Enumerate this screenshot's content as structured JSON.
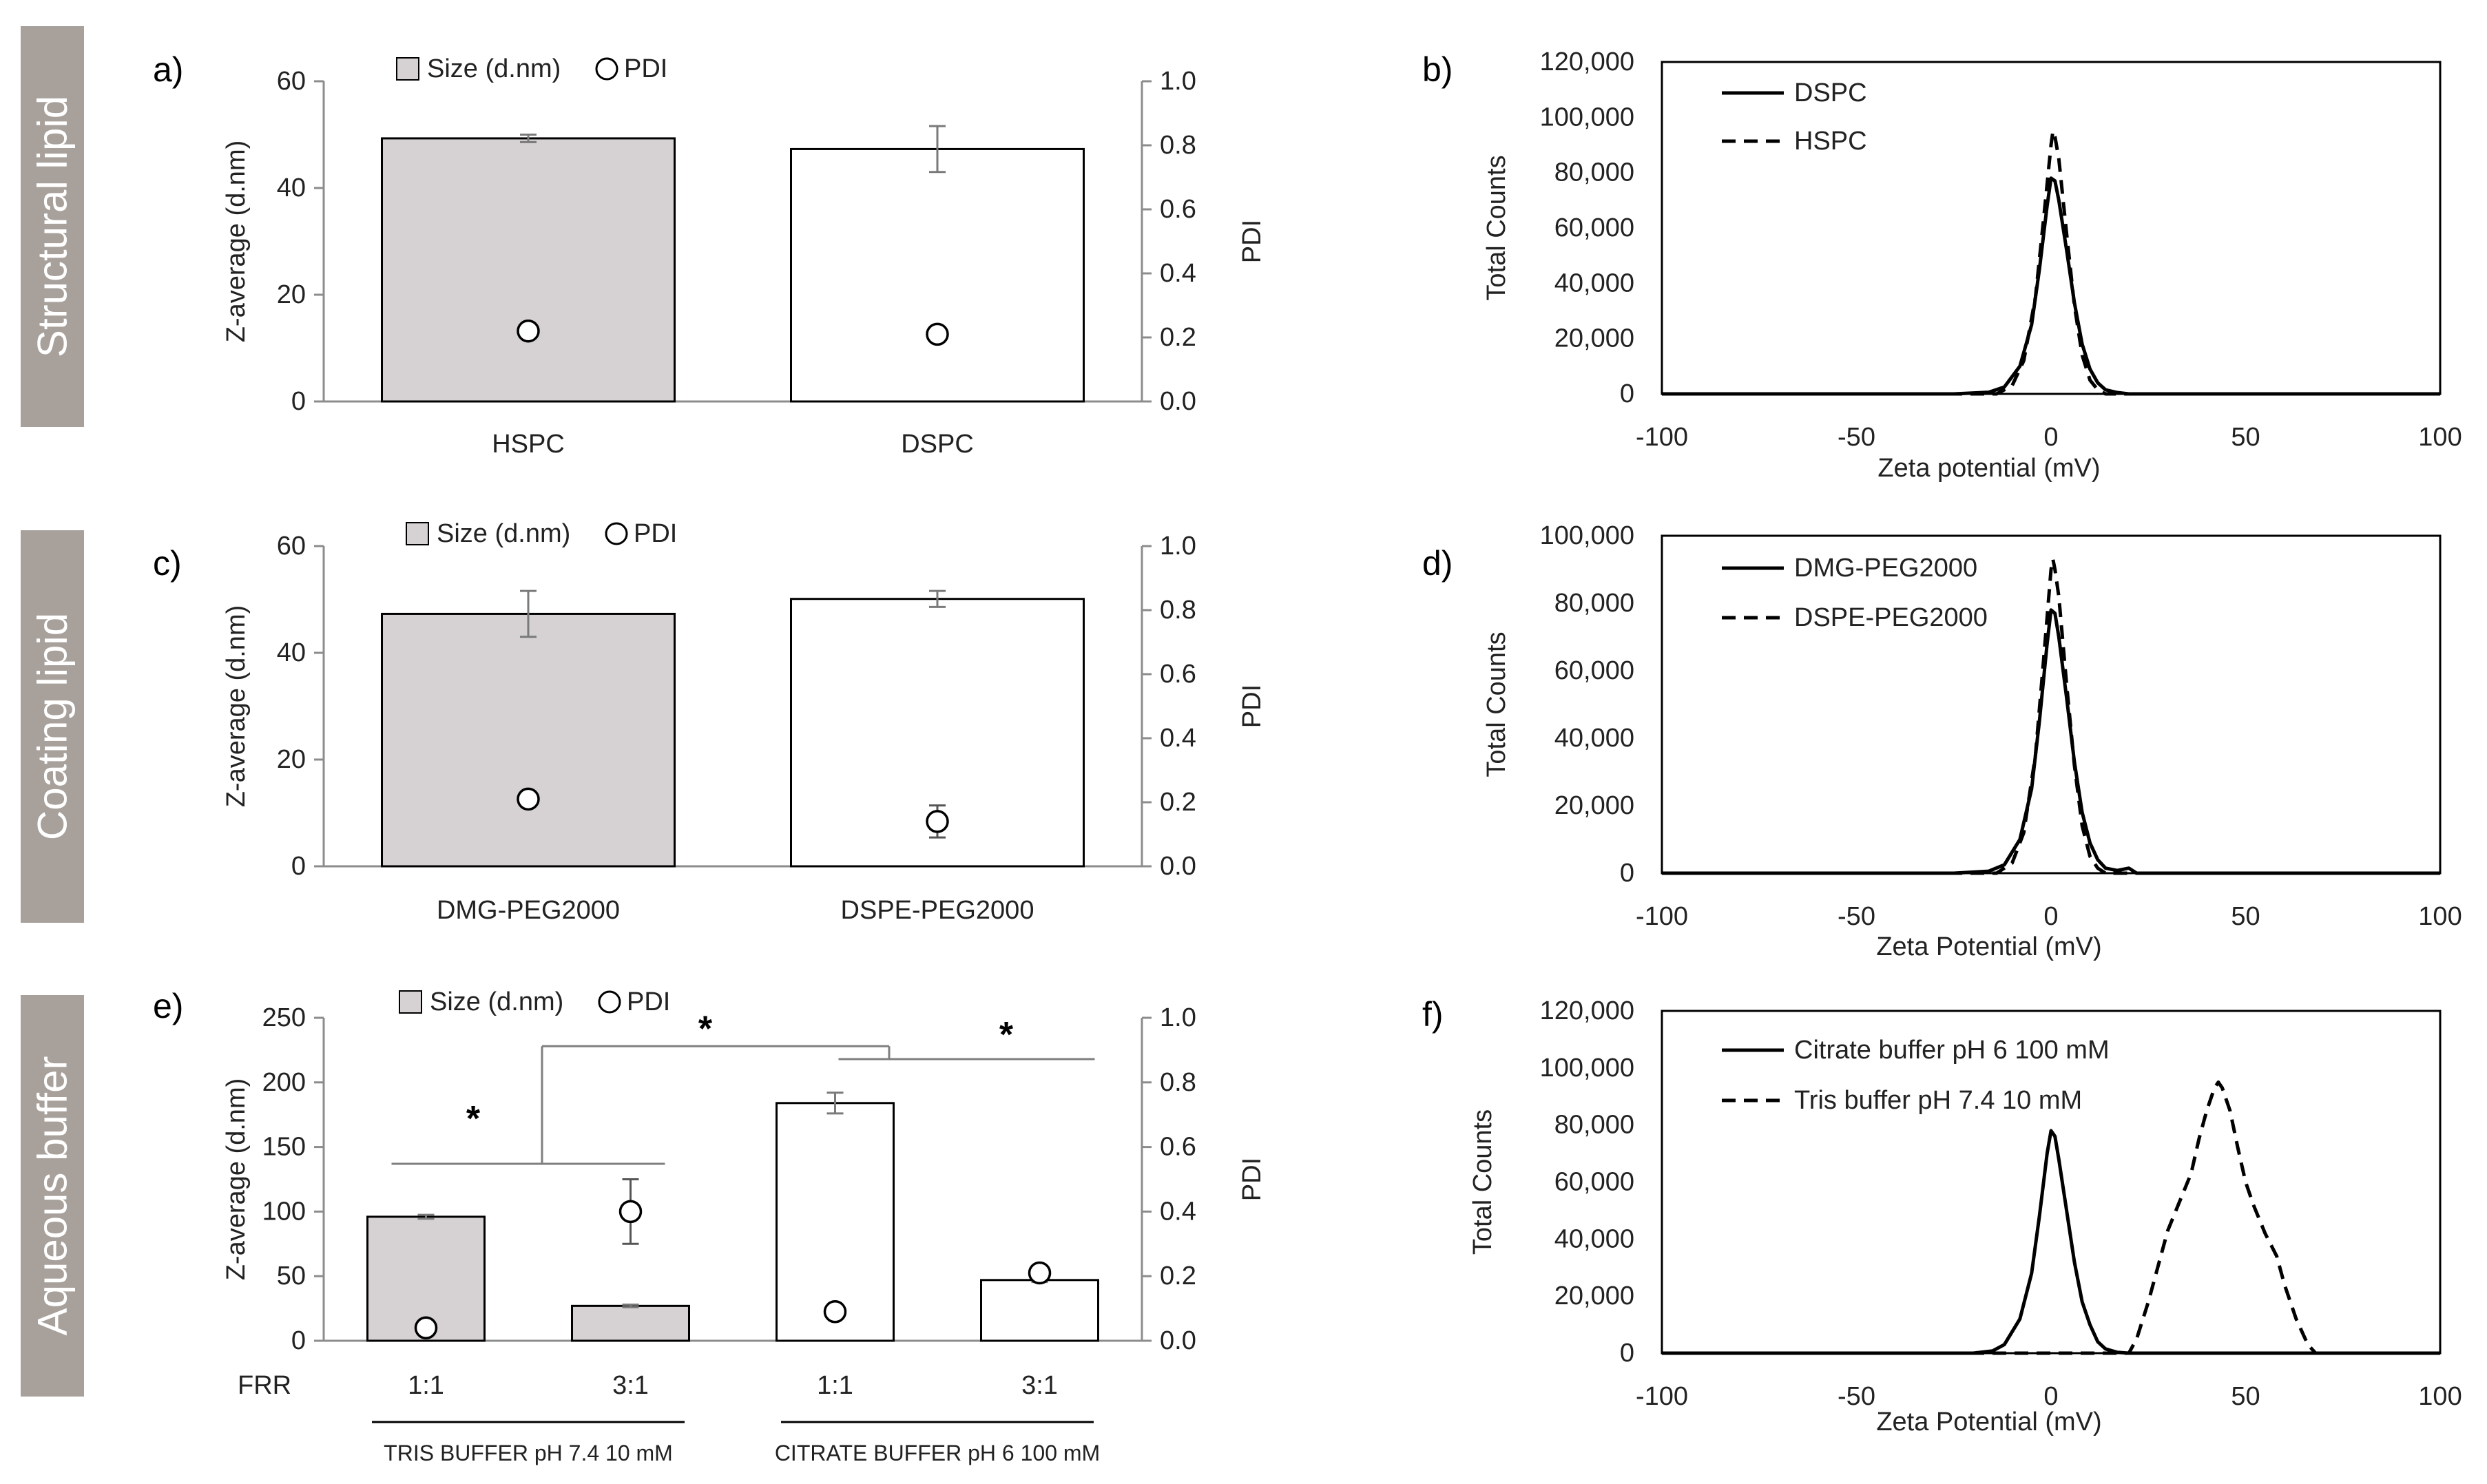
{
  "row_labels": [
    "Structural lipid",
    "Coating lipid",
    "Aqueous buffer"
  ],
  "colors": {
    "band": "#a7a09b",
    "gray_bar": "#d6d2d3",
    "white_bar": "#ffffff",
    "ink": "#000000",
    "sig_line": "#7f7f7f"
  },
  "chart_data": [
    {
      "panel": "a)",
      "type": "bar",
      "legend": [
        "Size (d.nm)",
        "PDI"
      ],
      "ylabel": "Z-average (d.nm)",
      "y2label": "PDI",
      "ylim": [
        0,
        60
      ],
      "yticks": [
        "0",
        "20",
        "40",
        "60"
      ],
      "y2lim": [
        0,
        1
      ],
      "y2ticks": [
        "0.0",
        "0.2",
        "0.4",
        "0.6",
        "0.8",
        "1.0"
      ],
      "categories": [
        "HSPC",
        "DSPC"
      ],
      "bar_fill": [
        "gray",
        "white"
      ],
      "values": [
        49.3,
        47.3
      ],
      "errors": [
        0.7,
        4.3
      ],
      "pdi": [
        0.22,
        0.21
      ],
      "pdi_errors": [
        0,
        0
      ]
    },
    {
      "panel": "c)",
      "type": "bar",
      "legend": [
        "Size (d.nm)",
        "PDI"
      ],
      "ylabel": "Z-average (d.nm)",
      "y2label": "PDI",
      "ylim": [
        0,
        60
      ],
      "yticks": [
        "0",
        "20",
        "40",
        "60"
      ],
      "y2lim": [
        0,
        1
      ],
      "y2ticks": [
        "0.0",
        "0.2",
        "0.4",
        "0.6",
        "0.8",
        "1.0"
      ],
      "categories": [
        "DMG-PEG2000",
        "DSPE-PEG2000"
      ],
      "bar_fill": [
        "gray",
        "white"
      ],
      "values": [
        47.3,
        50.1
      ],
      "errors": [
        4.3,
        1.5
      ],
      "pdi": [
        0.21,
        0.14
      ],
      "pdi_errors": [
        0,
        0.05
      ]
    },
    {
      "panel": "e)",
      "type": "bar",
      "legend": [
        "Size (d.nm)",
        "PDI"
      ],
      "ylabel": "Z-average (d.nm)",
      "y2label": "PDI",
      "ylim": [
        0,
        250
      ],
      "yticks": [
        "0",
        "50",
        "100",
        "150",
        "200",
        "250"
      ],
      "y2lim": [
        0,
        1
      ],
      "y2ticks": [
        "0.0",
        "0.2",
        "0.4",
        "0.6",
        "0.8",
        "1.0"
      ],
      "row_label": "FRR",
      "categories": [
        "1:1",
        "3:1",
        "1:1",
        "3:1"
      ],
      "bar_fill": [
        "gray",
        "gray",
        "white",
        "white"
      ],
      "values": [
        96,
        27,
        184,
        47
      ],
      "errors": [
        1.5,
        1.0,
        8,
        1.5
      ],
      "pdi": [
        0.04,
        0.4,
        0.09,
        0.21
      ],
      "pdi_errors": [
        0,
        0.1,
        0,
        0.02
      ],
      "groups": [
        "TRIS BUFFER pH 7.4 10 mM",
        "CITRATE BUFFER pH 6 100 mM"
      ],
      "significance": "*"
    },
    {
      "panel": "b)",
      "type": "line",
      "xlabel": "Zeta potential (mV)",
      "ylabel": "Total Counts",
      "xlim": [
        -100,
        100
      ],
      "xticks": [
        "-100",
        "-50",
        "0",
        "50",
        "100"
      ],
      "ylim": [
        0,
        120000
      ],
      "yticks": [
        "0",
        "20,000",
        "40,000",
        "60,000",
        "80,000",
        "100,000",
        "120,000"
      ],
      "series": [
        {
          "name": "DSPC",
          "style": "solid",
          "x": [
            -100,
            -25,
            -16,
            -12,
            -8,
            -5,
            -3,
            -1,
            0,
            1,
            2,
            4,
            6,
            8,
            10,
            12,
            14,
            17,
            20,
            25,
            100
          ],
          "y": [
            0,
            0,
            600,
            2500,
            10000,
            25000,
            45000,
            68000,
            78000,
            77000,
            70000,
            52000,
            33000,
            18000,
            9000,
            4000,
            1500,
            500,
            0,
            0,
            0
          ]
        },
        {
          "name": "HSPC",
          "style": "dashed",
          "x": [
            -100,
            -14,
            -10,
            -7,
            -4,
            -2,
            0,
            0.5,
            1,
            2,
            4,
            6,
            8,
            10,
            12,
            14,
            100
          ],
          "y": [
            0,
            0,
            3000,
            12000,
            35000,
            62000,
            90000,
            95000,
            93000,
            85000,
            58000,
            32000,
            14000,
            5000,
            1500,
            0,
            0
          ]
        }
      ]
    },
    {
      "panel": "d)",
      "type": "line",
      "xlabel": "Zeta Potential (mV)",
      "ylabel": "Total Counts",
      "xlim": [
        -100,
        100
      ],
      "xticks": [
        "-100",
        "-50",
        "0",
        "50",
        "100"
      ],
      "ylim": [
        0,
        100000
      ],
      "yticks": [
        "0",
        "20,000",
        "40,000",
        "60,000",
        "80,000",
        "100,000"
      ],
      "series": [
        {
          "name": "DMG-PEG2000",
          "style": "solid",
          "x": [
            -100,
            -25,
            -16,
            -12,
            -8,
            -5,
            -3,
            -1,
            0,
            1,
            2,
            4,
            6,
            8,
            10,
            12,
            14,
            17,
            20,
            22,
            25,
            100
          ],
          "y": [
            0,
            0,
            600,
            2500,
            10000,
            25000,
            45000,
            68000,
            78000,
            77000,
            70000,
            52000,
            33000,
            18000,
            9000,
            4000,
            1500,
            800,
            1500,
            0,
            0,
            0
          ]
        },
        {
          "name": "DSPE-PEG2000",
          "style": "dashed",
          "x": [
            -100,
            -14,
            -10,
            -7,
            -4,
            -2,
            0,
            0.5,
            1,
            2,
            4,
            6,
            8,
            10,
            12,
            14,
            100
          ],
          "y": [
            0,
            0,
            3000,
            12000,
            35000,
            62000,
            90000,
            93000,
            90000,
            82000,
            56000,
            32000,
            14000,
            5000,
            1500,
            0,
            0
          ]
        }
      ]
    },
    {
      "panel": "f)",
      "type": "line",
      "xlabel": "Zeta Potential (mV)",
      "ylabel": "Total Counts",
      "xlim": [
        -100,
        100
      ],
      "xticks": [
        "-100",
        "-50",
        "0",
        "50",
        "100"
      ],
      "ylim": [
        0,
        120000
      ],
      "yticks": [
        "0",
        "20,000",
        "40,000",
        "60,000",
        "80,000",
        "100,000",
        "120,000"
      ],
      "series": [
        {
          "name": "Citrate buffer pH 6 100 mM",
          "style": "solid",
          "x": [
            -100,
            -20,
            -15,
            -12,
            -8,
            -5,
            -3,
            -1,
            0,
            1,
            2,
            4,
            6,
            8,
            10,
            12,
            14,
            17,
            20,
            100
          ],
          "y": [
            0,
            0,
            800,
            3000,
            12000,
            28000,
            48000,
            70000,
            78000,
            76000,
            68000,
            50000,
            32000,
            18000,
            10000,
            4000,
            1500,
            300,
            0,
            0
          ]
        },
        {
          "name": "Tris buffer pH 7.4 10 mM",
          "style": "dashed",
          "x": [
            -100,
            20,
            22,
            25,
            28,
            30,
            33,
            36,
            38,
            40,
            42,
            43,
            44,
            46,
            48,
            50,
            52,
            55,
            58,
            60,
            63,
            66,
            68,
            100
          ],
          "y": [
            0,
            0,
            5000,
            18000,
            33000,
            43000,
            53000,
            63000,
            75000,
            85000,
            93000,
            95000,
            93000,
            85000,
            72000,
            60000,
            52000,
            42000,
            34000,
            24000,
            12000,
            3000,
            0,
            0
          ]
        }
      ]
    }
  ]
}
